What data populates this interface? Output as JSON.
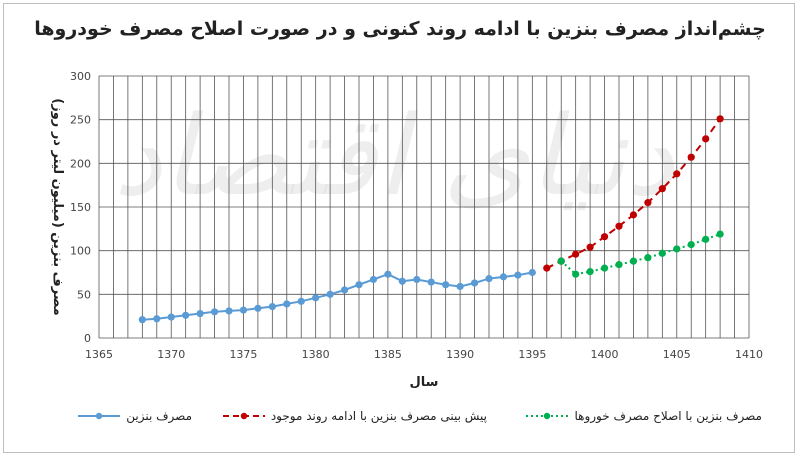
{
  "chart_data": {
    "type": "line",
    "title": "چشم‌انداز مصرف بنزین با ادامه روند کنونی و در صورت اصلاح مصرف خودروها",
    "xlabel": "سال",
    "ylabel": "مصرف بنزین (میلیون لیتر در روز)",
    "xlim": [
      1365,
      1410
    ],
    "ylim": [
      0,
      300
    ],
    "xticks": [
      "1365",
      "1370",
      "1375",
      "1380",
      "1385",
      "1390",
      "1395",
      "1400",
      "1405",
      "1410"
    ],
    "yticks": [
      "0",
      "50",
      "100",
      "150",
      "200",
      "250",
      "300"
    ],
    "grid": true,
    "legend_position": "bottom",
    "series": [
      {
        "name": "مصرف بنزین",
        "color": "#5b9bd5",
        "style": "solid",
        "x": [
          1368,
          1369,
          1370,
          1371,
          1372,
          1373,
          1374,
          1375,
          1376,
          1377,
          1378,
          1379,
          1380,
          1381,
          1382,
          1383,
          1384,
          1385,
          1386,
          1387,
          1388,
          1389,
          1390,
          1391,
          1392,
          1393,
          1394,
          1395
        ],
        "y": [
          21,
          22,
          24,
          26,
          28,
          30,
          31,
          32,
          34,
          36,
          39,
          42,
          46,
          50,
          55,
          61,
          67,
          73,
          65,
          67,
          64,
          61,
          59,
          63,
          68,
          70,
          72,
          75
        ]
      },
      {
        "name": "پیش بینی مصرف بنزین با ادامه روند موجود",
        "color": "#c00000",
        "style": "dashed",
        "x": [
          1396,
          1397,
          1398,
          1399,
          1400,
          1401,
          1402,
          1403,
          1404,
          1405,
          1406,
          1407,
          1408
        ],
        "y": [
          80,
          88,
          96,
          104,
          116,
          128,
          141,
          155,
          171,
          188,
          207,
          228,
          251
        ]
      },
      {
        "name": "مصرف بنزین با اصلاح مصرف خوروها",
        "color": "#00b050",
        "style": "dotted",
        "x": [
          1397,
          1398,
          1399,
          1400,
          1401,
          1402,
          1403,
          1404,
          1405,
          1406,
          1407,
          1408
        ],
        "y": [
          88,
          73,
          76,
          80,
          84,
          88,
          92,
          97,
          102,
          107,
          113,
          119
        ]
      }
    ]
  }
}
